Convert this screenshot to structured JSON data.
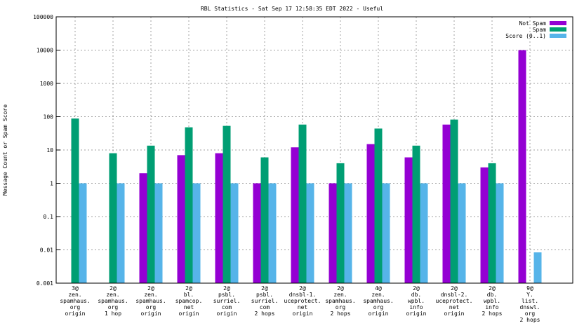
{
  "chart_data": {
    "type": "bar",
    "title": "RBL Statistics - Sat Sep 17 12:58:35 EDT 2022 - Useful",
    "xlabel": "",
    "ylabel": "Message Count or Spam Score",
    "yscale": "log",
    "ylim": [
      0.001,
      100000
    ],
    "yticks": [
      "0.001",
      "0.01",
      "0.1",
      "1",
      "10",
      "100",
      "1000",
      "10000",
      "100000"
    ],
    "grid": true,
    "legend_position": "top-right",
    "categories": [
      [
        "3@",
        "zen.",
        "spamhaus.",
        "org",
        "origin"
      ],
      [
        "2@",
        "zen.",
        "spamhaus.",
        "org",
        "1 hop"
      ],
      [
        "2@",
        "zen.",
        "spamhaus.",
        "org",
        "origin"
      ],
      [
        "2@",
        "bl.",
        "spamcop.",
        "net",
        "origin"
      ],
      [
        "2@",
        "psbl.",
        "surriel.",
        "com",
        "origin"
      ],
      [
        "2@",
        "psbl.",
        "surriel.",
        "com",
        "2 hops"
      ],
      [
        "2@",
        "dnsbl-1.",
        "uceprotect.",
        "net",
        "origin"
      ],
      [
        "2@",
        "zen.",
        "spamhaus.",
        "org",
        "2 hops"
      ],
      [
        "4@",
        "zen.",
        "spamhaus.",
        "org",
        "origin"
      ],
      [
        "2@",
        "db.",
        "wpbl.",
        "info",
        "origin"
      ],
      [
        "2@",
        "dnsbl-2.",
        "uceprotect.",
        "net",
        "origin"
      ],
      [
        "2@",
        "db.",
        "wpbl.",
        "info",
        "2 hops"
      ],
      [
        "9@",
        "Y.",
        "list.",
        "dnswl.",
        "org",
        "2 hops"
      ]
    ],
    "series": [
      {
        "name": "Not Spam",
        "color": "#9400d3",
        "values": [
          null,
          null,
          2,
          7,
          8,
          1,
          12,
          1,
          15,
          6,
          58,
          3,
          10000
        ]
      },
      {
        "name": "Spam",
        "color": "#009e73",
        "values": [
          88,
          8,
          13.5,
          48,
          53,
          6,
          58,
          4,
          44,
          13.5,
          82,
          4,
          null
        ]
      },
      {
        "name": "Score (0..1)",
        "color": "#56b4e9",
        "values": [
          1,
          1,
          1,
          1,
          1,
          1,
          1,
          1,
          1,
          1,
          1,
          1,
          0.0084
        ]
      }
    ]
  }
}
